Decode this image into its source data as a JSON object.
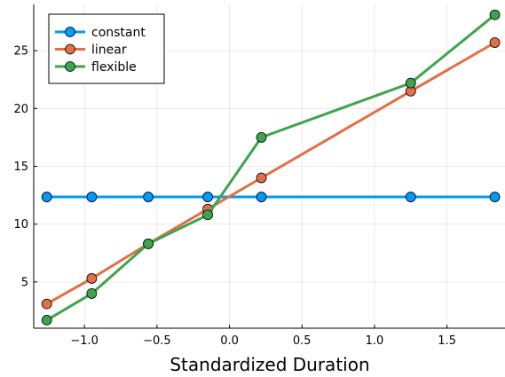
{
  "chart_data": {
    "type": "line",
    "title": "",
    "xlabel": "Standardized Duration",
    "ylabel": "",
    "xlim": [
      -1.35,
      1.9
    ],
    "ylim": [
      1.0,
      29.0
    ],
    "xticks": [
      -1.0,
      -0.5,
      0.0,
      0.5,
      1.0,
      1.5
    ],
    "xtick_labels": [
      "−1.0",
      "−0.5",
      "0.0",
      "0.5",
      "1.0",
      "1.5"
    ],
    "yticks": [
      5,
      10,
      15,
      20,
      25
    ],
    "ytick_labels": [
      "5",
      "10",
      "15",
      "20",
      "25"
    ],
    "grid": true,
    "legend_position": "top-left",
    "x": [
      -1.26,
      -0.95,
      -0.56,
      -0.15,
      0.22,
      1.25,
      1.83
    ],
    "series": [
      {
        "name": "constant",
        "color": "#009AFA",
        "values": [
          12.35,
          12.35,
          12.35,
          12.35,
          12.35,
          12.35,
          12.35
        ]
      },
      {
        "name": "linear",
        "color": "#E26F46",
        "values": [
          3.1,
          5.3,
          8.3,
          11.3,
          14.0,
          21.5,
          25.7
        ]
      },
      {
        "name": "flexible",
        "color": "#3DA44D",
        "values": [
          1.7,
          4.0,
          8.3,
          10.8,
          17.5,
          22.2,
          28.1
        ]
      }
    ]
  }
}
